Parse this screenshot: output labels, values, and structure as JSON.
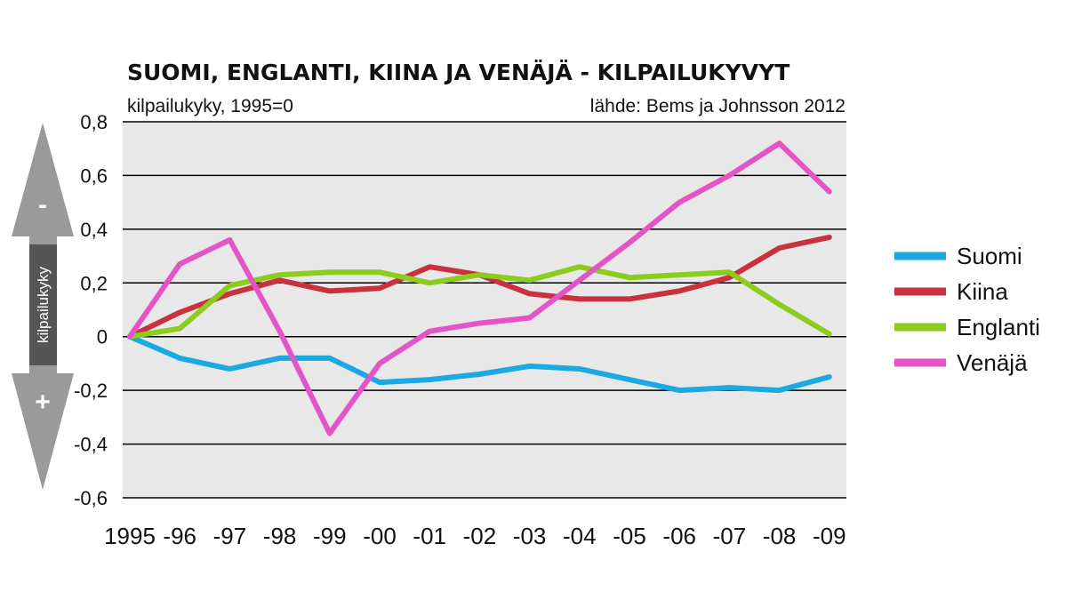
{
  "chart_data": {
    "type": "line",
    "title": "SUOMI, ENGLANTI, KIINA JA VENÄJÄ - KILPAILUKYVYT",
    "subtitle_left": "kilpailukyky, 1995=0",
    "subtitle_right": "lähde: Bems ja Johnsson 2012",
    "ylabel": "kilpailukyky",
    "ylim": [
      -0.6,
      0.8
    ],
    "yticks": [
      0.8,
      0.6,
      0.4,
      0.2,
      0,
      -0.2,
      -0.4,
      -0.6
    ],
    "ytick_labels": [
      "0,8",
      "0,6",
      "0,4",
      "0,2",
      "0",
      "-0,2",
      "-0,4",
      "-0,6"
    ],
    "categories": [
      "1995",
      "-96",
      "-97",
      "-98",
      "-99",
      "-00",
      "-01",
      "-02",
      "-03",
      "-04",
      "-05",
      "-06",
      "-07",
      "-08",
      "-09"
    ],
    "grid": true,
    "legend_position": "right",
    "arrow_minus": "-",
    "arrow_plus": "+",
    "series": [
      {
        "name": "Suomi",
        "color": "#1aa9e0",
        "values": [
          0.0,
          -0.08,
          -0.12,
          -0.08,
          -0.08,
          -0.17,
          -0.16,
          -0.14,
          -0.11,
          -0.12,
          -0.16,
          -0.2,
          -0.19,
          -0.2,
          -0.15
        ]
      },
      {
        "name": "Kiina",
        "color": "#c8323f",
        "values": [
          0.0,
          0.09,
          0.16,
          0.21,
          0.17,
          0.18,
          0.26,
          0.23,
          0.16,
          0.14,
          0.14,
          0.17,
          0.22,
          0.33,
          0.37
        ]
      },
      {
        "name": "Englanti",
        "color": "#8ccc1c",
        "values": [
          0.0,
          0.03,
          0.19,
          0.23,
          0.24,
          0.24,
          0.2,
          0.23,
          0.21,
          0.26,
          0.22,
          0.23,
          0.24,
          0.12,
          0.01
        ]
      },
      {
        "name": "Venäjä",
        "color": "#e354c7",
        "values": [
          0.0,
          0.27,
          0.36,
          0.02,
          -0.36,
          -0.1,
          0.02,
          0.05,
          0.07,
          0.21,
          0.35,
          0.5,
          0.6,
          0.72,
          0.54
        ]
      }
    ]
  }
}
